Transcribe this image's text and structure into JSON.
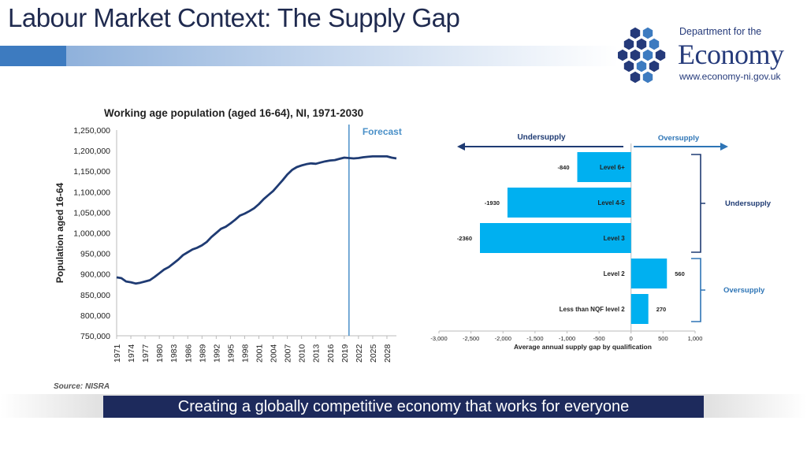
{
  "slide": {
    "title": "Labour Market Context: The Supply Gap",
    "source_label": "Source:",
    "source_value": "NISRA",
    "footer": "Creating a globally competitive economy that works for everyone"
  },
  "logo": {
    "line1": "Department for the",
    "line2": "Economy",
    "line3": "www.economy-ni.gov.uk",
    "icon": "hexagon-cluster-icon",
    "colors": [
      "#253a7a",
      "#3d7bc0"
    ]
  },
  "chart_data": [
    {
      "type": "line",
      "title": "Working age population (aged 16-64), NI, 1971-2030",
      "ylabel": "Population aged 16-64",
      "xlabel": "",
      "ylim": [
        750000,
        1250000
      ],
      "yticks": [
        "750,000",
        "800,000",
        "850,000",
        "900,000",
        "950,000",
        "1,000,000",
        "1,050,000",
        "1,100,000",
        "1,150,000",
        "1,200,000",
        "1,250,000"
      ],
      "xlim": [
        1971,
        2030
      ],
      "xticks": [
        "1971",
        "1974",
        "1977",
        "1980",
        "1983",
        "1986",
        "1989",
        "1992",
        "1995",
        "1998",
        "2001",
        "2004",
        "2007",
        "2010",
        "2013",
        "2016",
        "2019",
        "2022",
        "2025",
        "2028"
      ],
      "forecast_label": "Forecast",
      "forecast_year": 2020,
      "line_color": "#1f3b73",
      "forecast_color": "#4a90c8",
      "grid": false,
      "x": [
        1971,
        1972,
        1973,
        1974,
        1975,
        1976,
        1977,
        1978,
        1979,
        1980,
        1981,
        1982,
        1983,
        1984,
        1985,
        1986,
        1987,
        1988,
        1989,
        1990,
        1991,
        1992,
        1993,
        1994,
        1995,
        1996,
        1997,
        1998,
        1999,
        2000,
        2001,
        2002,
        2003,
        2004,
        2005,
        2006,
        2007,
        2008,
        2009,
        2010,
        2011,
        2012,
        2013,
        2014,
        2015,
        2016,
        2017,
        2018,
        2019,
        2020,
        2021,
        2022,
        2023,
        2024,
        2025,
        2026,
        2027,
        2028,
        2029,
        2030
      ],
      "values": [
        892000,
        890000,
        882000,
        880000,
        877000,
        879000,
        882000,
        885000,
        893000,
        902000,
        911000,
        917000,
        926000,
        935000,
        946000,
        953000,
        960000,
        964000,
        970000,
        978000,
        990000,
        1000000,
        1010000,
        1015000,
        1023000,
        1032000,
        1042000,
        1047000,
        1053000,
        1060000,
        1070000,
        1082000,
        1092000,
        1102000,
        1115000,
        1128000,
        1142000,
        1153000,
        1160000,
        1164000,
        1167000,
        1169000,
        1168000,
        1171000,
        1174000,
        1176000,
        1177000,
        1180000,
        1183000,
        1182000,
        1181000,
        1182000,
        1184000,
        1185000,
        1186000,
        1186000,
        1186000,
        1186000,
        1183000,
        1181000
      ]
    },
    {
      "type": "bar",
      "orientation": "horizontal",
      "xlabel": "Average annual supply gap by qualification",
      "xlim": [
        -3000,
        1000
      ],
      "xticks": [
        "-3,000",
        "-2,500",
        "-2,000",
        "-1,500",
        "-1,000",
        "-500",
        "0",
        "500",
        "1,000"
      ],
      "categories": [
        "Level 6+",
        "Level 4-5",
        "Level 3",
        "Level 2",
        "Less than NQF level 2"
      ],
      "values": [
        -840,
        -1930,
        -2360,
        560,
        270
      ],
      "value_labels": [
        "-840",
        "-1930",
        "-2360",
        "560",
        "270"
      ],
      "bar_color": "#00b0f0",
      "header_left": "Undersupply",
      "header_right": "Oversupply",
      "bracket_top_label": "Undersupply",
      "bracket_bottom_label": "Oversupply",
      "header_left_color": "#1f3b73",
      "header_right_color": "#2e75b6"
    }
  ]
}
